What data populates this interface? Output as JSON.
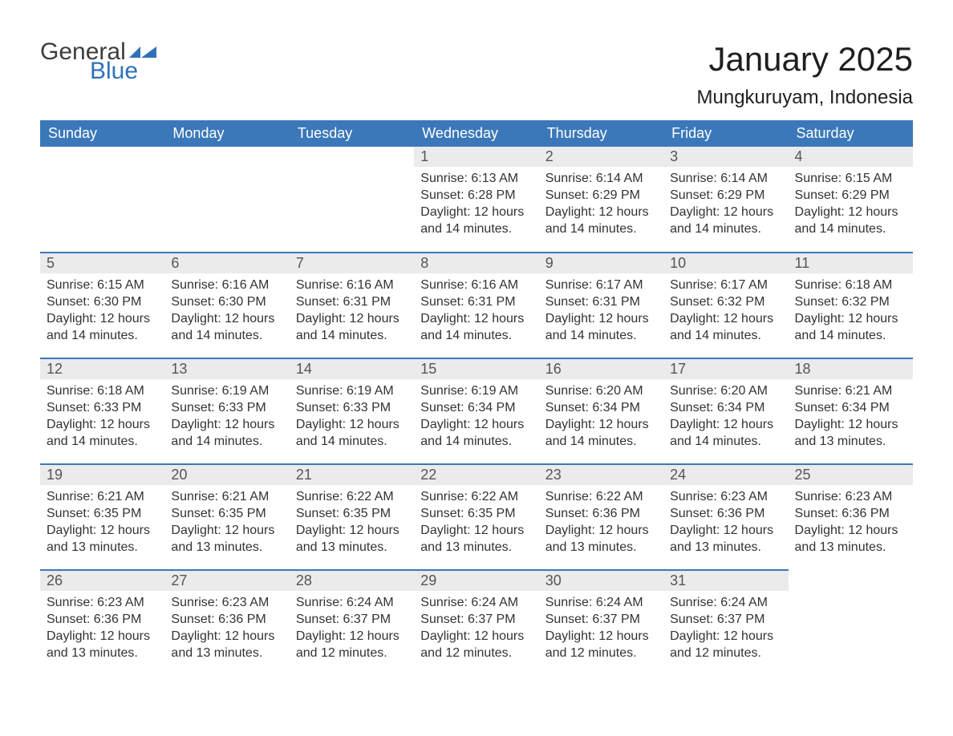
{
  "logo": {
    "text1": "General",
    "text2": "Blue"
  },
  "title": "January 2025",
  "location": "Mungkuruyam, Indonesia",
  "colors": {
    "header_bg": "#3b78b9",
    "header_text": "#ffffff",
    "daynum_bg": "#ebebeb",
    "body_text": "#333333",
    "rule": "#3b78b9",
    "logo_gray": "#3d3d3d",
    "logo_blue": "#2f72b8"
  },
  "typography": {
    "title_fontsize": 42,
    "location_fontsize": 24,
    "weekday_fontsize": 18,
    "daynum_fontsize": 18,
    "body_fontsize": 16
  },
  "weekdays": [
    "Sunday",
    "Monday",
    "Tuesday",
    "Wednesday",
    "Thursday",
    "Friday",
    "Saturday"
  ],
  "labels": {
    "sunrise": "Sunrise: ",
    "sunset": "Sunset: ",
    "daylight": "Daylight: "
  },
  "weeks": [
    [
      null,
      null,
      null,
      {
        "d": "1",
        "sr": "6:13 AM",
        "ss": "6:28 PM",
        "dl": "12 hours and 14 minutes."
      },
      {
        "d": "2",
        "sr": "6:14 AM",
        "ss": "6:29 PM",
        "dl": "12 hours and 14 minutes."
      },
      {
        "d": "3",
        "sr": "6:14 AM",
        "ss": "6:29 PM",
        "dl": "12 hours and 14 minutes."
      },
      {
        "d": "4",
        "sr": "6:15 AM",
        "ss": "6:29 PM",
        "dl": "12 hours and 14 minutes."
      }
    ],
    [
      {
        "d": "5",
        "sr": "6:15 AM",
        "ss": "6:30 PM",
        "dl": "12 hours and 14 minutes."
      },
      {
        "d": "6",
        "sr": "6:16 AM",
        "ss": "6:30 PM",
        "dl": "12 hours and 14 minutes."
      },
      {
        "d": "7",
        "sr": "6:16 AM",
        "ss": "6:31 PM",
        "dl": "12 hours and 14 minutes."
      },
      {
        "d": "8",
        "sr": "6:16 AM",
        "ss": "6:31 PM",
        "dl": "12 hours and 14 minutes."
      },
      {
        "d": "9",
        "sr": "6:17 AM",
        "ss": "6:31 PM",
        "dl": "12 hours and 14 minutes."
      },
      {
        "d": "10",
        "sr": "6:17 AM",
        "ss": "6:32 PM",
        "dl": "12 hours and 14 minutes."
      },
      {
        "d": "11",
        "sr": "6:18 AM",
        "ss": "6:32 PM",
        "dl": "12 hours and 14 minutes."
      }
    ],
    [
      {
        "d": "12",
        "sr": "6:18 AM",
        "ss": "6:33 PM",
        "dl": "12 hours and 14 minutes."
      },
      {
        "d": "13",
        "sr": "6:19 AM",
        "ss": "6:33 PM",
        "dl": "12 hours and 14 minutes."
      },
      {
        "d": "14",
        "sr": "6:19 AM",
        "ss": "6:33 PM",
        "dl": "12 hours and 14 minutes."
      },
      {
        "d": "15",
        "sr": "6:19 AM",
        "ss": "6:34 PM",
        "dl": "12 hours and 14 minutes."
      },
      {
        "d": "16",
        "sr": "6:20 AM",
        "ss": "6:34 PM",
        "dl": "12 hours and 14 minutes."
      },
      {
        "d": "17",
        "sr": "6:20 AM",
        "ss": "6:34 PM",
        "dl": "12 hours and 14 minutes."
      },
      {
        "d": "18",
        "sr": "6:21 AM",
        "ss": "6:34 PM",
        "dl": "12 hours and 13 minutes."
      }
    ],
    [
      {
        "d": "19",
        "sr": "6:21 AM",
        "ss": "6:35 PM",
        "dl": "12 hours and 13 minutes."
      },
      {
        "d": "20",
        "sr": "6:21 AM",
        "ss": "6:35 PM",
        "dl": "12 hours and 13 minutes."
      },
      {
        "d": "21",
        "sr": "6:22 AM",
        "ss": "6:35 PM",
        "dl": "12 hours and 13 minutes."
      },
      {
        "d": "22",
        "sr": "6:22 AM",
        "ss": "6:35 PM",
        "dl": "12 hours and 13 minutes."
      },
      {
        "d": "23",
        "sr": "6:22 AM",
        "ss": "6:36 PM",
        "dl": "12 hours and 13 minutes."
      },
      {
        "d": "24",
        "sr": "6:23 AM",
        "ss": "6:36 PM",
        "dl": "12 hours and 13 minutes."
      },
      {
        "d": "25",
        "sr": "6:23 AM",
        "ss": "6:36 PM",
        "dl": "12 hours and 13 minutes."
      }
    ],
    [
      {
        "d": "26",
        "sr": "6:23 AM",
        "ss": "6:36 PM",
        "dl": "12 hours and 13 minutes."
      },
      {
        "d": "27",
        "sr": "6:23 AM",
        "ss": "6:36 PM",
        "dl": "12 hours and 13 minutes."
      },
      {
        "d": "28",
        "sr": "6:24 AM",
        "ss": "6:37 PM",
        "dl": "12 hours and 12 minutes."
      },
      {
        "d": "29",
        "sr": "6:24 AM",
        "ss": "6:37 PM",
        "dl": "12 hours and 12 minutes."
      },
      {
        "d": "30",
        "sr": "6:24 AM",
        "ss": "6:37 PM",
        "dl": "12 hours and 12 minutes."
      },
      {
        "d": "31",
        "sr": "6:24 AM",
        "ss": "6:37 PM",
        "dl": "12 hours and 12 minutes."
      },
      null
    ]
  ]
}
